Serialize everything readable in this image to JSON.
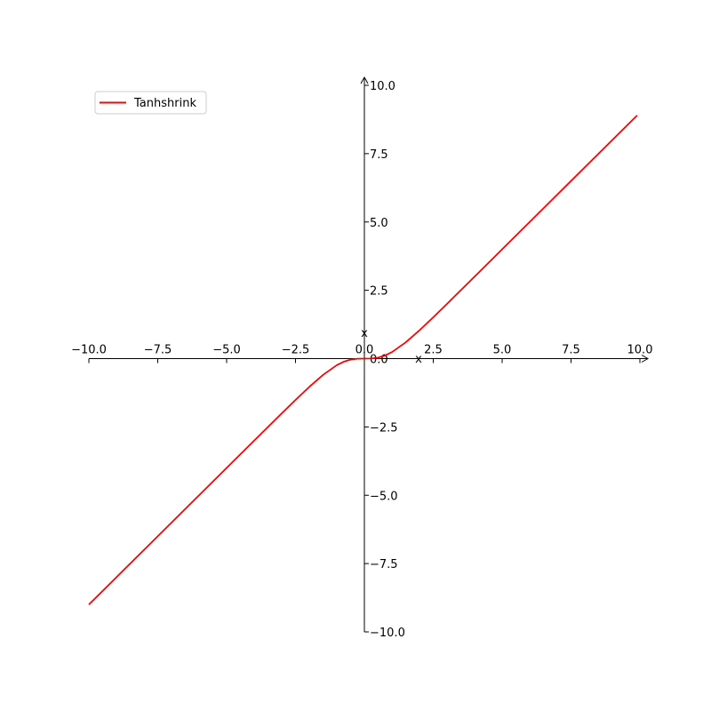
{
  "chart_data": {
    "type": "line",
    "title": "",
    "xlabel": "x",
    "ylabel": "x",
    "xlim": [
      -10,
      10
    ],
    "ylim": [
      -10,
      10
    ],
    "xticks": [
      -10,
      -7.5,
      -5,
      -2.5,
      0,
      2.5,
      5,
      7.5,
      10
    ],
    "yticks": [
      -10,
      -7.5,
      -5,
      -2.5,
      0,
      2.5,
      5,
      7.5,
      10
    ],
    "xtick_labels": [
      "−10.0",
      "−7.5",
      "−5.0",
      "−2.5",
      "0.0",
      "2.5",
      "5.0",
      "7.5",
      "10.0"
    ],
    "ytick_labels": [
      "−10.0",
      "−7.5",
      "−5.0",
      "−2.5",
      "0.0",
      "2.5",
      "5.0",
      "7.5",
      "10.0"
    ],
    "grid": false,
    "legend_position": "top-left",
    "series": [
      {
        "name": "Tanhshrink",
        "color": "#ff0000",
        "x": [
          -10,
          -9,
          -8,
          -7,
          -6,
          -5,
          -4,
          -3,
          -2.5,
          -2,
          -1.5,
          -1,
          -0.75,
          -0.5,
          -0.25,
          0,
          0.25,
          0.5,
          0.75,
          1,
          1.5,
          2,
          2.5,
          3,
          4,
          5,
          6,
          7,
          8,
          9,
          9.9
        ],
        "y": [
          -9,
          -8,
          -7,
          -6,
          -5,
          -4.0001,
          -3.0007,
          -2.005,
          -1.513,
          -1.036,
          -0.595,
          -0.238,
          -0.115,
          -0.038,
          -0.005,
          0,
          0.005,
          0.038,
          0.115,
          0.238,
          0.595,
          1.036,
          1.513,
          2.005,
          3.0007,
          4.0001,
          5,
          6,
          7,
          8,
          8.9
        ]
      }
    ]
  }
}
